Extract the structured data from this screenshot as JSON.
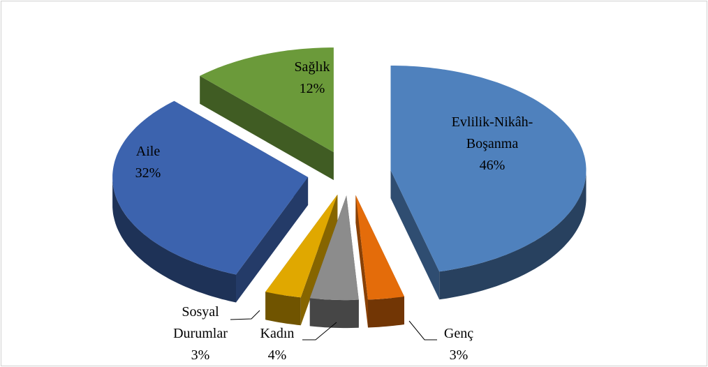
{
  "chart_data": {
    "type": "pie3d",
    "categories": [
      "Evlilik-Nikâh-Boşanma",
      "Genç",
      "Kadın",
      "Sosyal Durumlar",
      "Aile",
      "Sağlık"
    ],
    "values": [
      46,
      3,
      4,
      3,
      32,
      12
    ],
    "value_labels": [
      "46%",
      "3%",
      "4%",
      "3%",
      "32%",
      "12%"
    ],
    "colors": [
      "#4f81bd",
      "#e46c0a",
      "#8c8c8c",
      "#e0a800",
      "#3c63ae",
      "#6b9a3a"
    ]
  }
}
